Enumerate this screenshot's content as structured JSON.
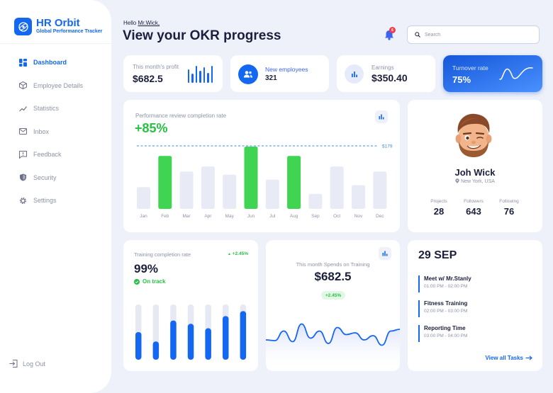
{
  "brand": {
    "title": "HR Orbit",
    "subtitle": "Global Performance Tracker"
  },
  "nav": {
    "items": [
      {
        "label": "Dashboard",
        "icon": "grid-icon",
        "active": true
      },
      {
        "label": "Employee Details",
        "icon": "box-icon"
      },
      {
        "label": "Statistics",
        "icon": "trend-icon"
      },
      {
        "label": "Inbox",
        "icon": "mail-icon"
      },
      {
        "label": "Feedback",
        "icon": "message-alert-icon"
      },
      {
        "label": "Security",
        "icon": "shield-icon"
      },
      {
        "label": "Settings",
        "icon": "gear-icon"
      }
    ],
    "logout": "Log Out"
  },
  "header": {
    "greeting_prefix": "Hello",
    "greeting_name": "Mr.Wick,",
    "title": "View your OKR progress",
    "notification_count": "6",
    "search_placeholder": "Search"
  },
  "stats": {
    "profit": {
      "label": "This month's profit",
      "value": "$682.5",
      "bars": [
        0.8,
        0.55,
        1.0,
        0.7,
        0.9,
        0.6,
        1.0
      ]
    },
    "employees": {
      "label": "New employees",
      "value": "321"
    },
    "earnings": {
      "label": "Earnings",
      "value": "$350.40"
    },
    "turnover": {
      "label": "Turnover rate",
      "value": "75%"
    }
  },
  "performance": {
    "title": "Performance review completion rate",
    "value": "+85%",
    "target_label": "$179",
    "colors": {
      "highlight": "#3fd451",
      "bar": "#e8ebf5",
      "target": "#3d8fe0"
    }
  },
  "chart_data": [
    {
      "type": "bar",
      "categories": [
        "Jan",
        "Feb",
        "Mar",
        "Apr",
        "May",
        "Jun",
        "Jul",
        "Aug",
        "Sep",
        "Oct",
        "Nov",
        "Dec"
      ],
      "values": [
        0.35,
        0.85,
        0.6,
        0.68,
        0.55,
        1.0,
        0.47,
        0.85,
        0.24,
        0.68,
        0.38,
        0.6
      ],
      "highlight": [
        "Feb",
        "Jun",
        "Aug"
      ],
      "target": 1.0
    },
    {
      "type": "bar",
      "values": [
        0.5,
        0.33,
        0.71,
        0.65,
        0.57,
        0.79,
        0.88
      ],
      "track": 1.0
    },
    {
      "type": "line",
      "values": [
        0.3,
        0.28,
        0.55,
        0.25,
        0.75,
        0.35,
        0.55,
        0.2,
        0.65,
        0.45,
        0.5,
        0.3,
        0.42,
        0.15,
        0.55,
        0.6
      ]
    }
  ],
  "profile": {
    "name": "Joh Wick",
    "location": "New York, USA",
    "projects": {
      "label": "Projects",
      "value": "28"
    },
    "followers": {
      "label": "Followers",
      "value": "643"
    },
    "following": {
      "label": "Following",
      "value": "76"
    }
  },
  "training": {
    "title": "Training completion rate",
    "delta": "+2.45%",
    "value": "99%",
    "status": "On track"
  },
  "spends": {
    "title": "This month Spends on Training",
    "value": "$682.5",
    "badge": "+2.45%"
  },
  "tasks": {
    "date": "29 SEP",
    "items": [
      {
        "title": "Meet w/ Mr.Stanly",
        "time": "01:00 PM - 02:00 PM"
      },
      {
        "title": "Fitness Training",
        "time": "02:00 PM - 03:00 PM"
      },
      {
        "title": "Reporting Time",
        "time": "03:00 PM - 04:00 PM"
      }
    ],
    "view_all": "View all Tasks"
  }
}
